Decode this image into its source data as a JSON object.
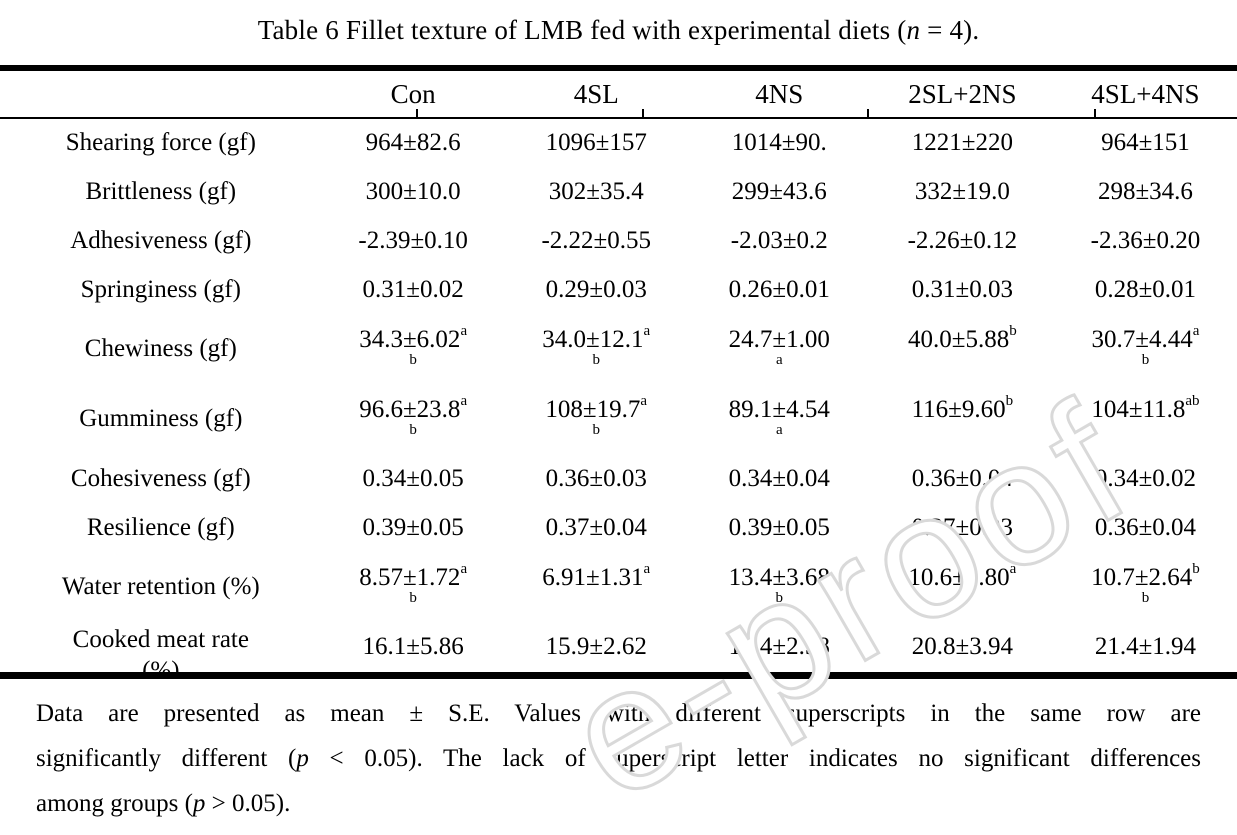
{
  "title": {
    "prefix": "Table 6 Fillet texture of LMB fed with experimental diets (",
    "italic_n": "n",
    "suffix": " = 4)."
  },
  "table": {
    "header": [
      "Con",
      "4SL",
      "4NS",
      "2SL+2NS",
      "4SL+4NS"
    ],
    "rows": [
      {
        "label": "Shearing force (gf)",
        "cells": [
          {
            "v": "964±82.6"
          },
          {
            "v": "1096±157"
          },
          {
            "v": "1014±90."
          },
          {
            "v": "1221±220"
          },
          {
            "v": "964±151"
          }
        ]
      },
      {
        "label": "Brittleness (gf)",
        "cells": [
          {
            "v": "300±10.0"
          },
          {
            "v": "302±35.4"
          },
          {
            "v": "299±43.6"
          },
          {
            "v": "332±19.0"
          },
          {
            "v": "298±34.6"
          }
        ]
      },
      {
        "label": "Adhesiveness (gf)",
        "cells": [
          {
            "v": "-2.39±0.10"
          },
          {
            "v": "-2.22±0.55"
          },
          {
            "v": "-2.03±0.2"
          },
          {
            "v": "-2.26±0.12"
          },
          {
            "v": "-2.36±0.20"
          }
        ]
      },
      {
        "label": "Springiness (gf)",
        "cells": [
          {
            "v": "0.31±0.02"
          },
          {
            "v": "0.29±0.03"
          },
          {
            "v": "0.26±0.01"
          },
          {
            "v": "0.31±0.03"
          },
          {
            "v": "0.28±0.01"
          }
        ]
      },
      {
        "label": "Chewiness (gf)",
        "cells": [
          {
            "v": "34.3±6.02",
            "sup": "a",
            "wrap": "b"
          },
          {
            "v": "34.0±12.1",
            "sup": "a",
            "wrap": "b"
          },
          {
            "v": "24.7±1.00",
            "wrap": "a"
          },
          {
            "v": "40.0±5.88",
            "sup": "b"
          },
          {
            "v": "30.7±4.44",
            "sup": "a",
            "wrap": "b"
          }
        ]
      },
      {
        "label": "Gumminess (gf)",
        "cells": [
          {
            "v": "96.6±23.8",
            "sup": "a",
            "wrap": "b"
          },
          {
            "v": "108±19.7",
            "sup": "a",
            "wrap": "b"
          },
          {
            "v": "89.1±4.54",
            "wrap": "a"
          },
          {
            "v": "116±9.60",
            "sup": "b"
          },
          {
            "v": "104±11.8",
            "sup": "ab"
          }
        ]
      },
      {
        "label": "Cohesiveness (gf)",
        "cells": [
          {
            "v": "0.34±0.05"
          },
          {
            "v": "0.36±0.03"
          },
          {
            "v": "0.34±0.04"
          },
          {
            "v": "0.36±0.04"
          },
          {
            "v": "0.34±0.02"
          }
        ]
      },
      {
        "label": "Resilience (gf)",
        "cells": [
          {
            "v": "0.39±0.05"
          },
          {
            "v": "0.37±0.04"
          },
          {
            "v": "0.39±0.05"
          },
          {
            "v": "0.37±0.03"
          },
          {
            "v": "0.36±0.04"
          }
        ]
      },
      {
        "label": "Water retention (%)",
        "cells": [
          {
            "v": "8.57±1.72",
            "sup": "a",
            "wrap": "b"
          },
          {
            "v": "6.91±1.31",
            "sup": "a"
          },
          {
            "v": "13.4±3.68",
            "wrap": "b"
          },
          {
            "v": "10.6±2.80",
            "sup": "a",
            "wrap": "b"
          },
          {
            "v": "10.7±2.64",
            "sup": "b",
            "wrap": "b"
          }
        ]
      },
      {
        "label": "Cooked meat rate",
        "label2": "(%)",
        "cells": [
          {
            "v": "16.1±5.86"
          },
          {
            "v": "15.9±2.62"
          },
          {
            "v": "19.4±2.58"
          },
          {
            "v": "20.8±3.94"
          },
          {
            "v": "21.4±1.94"
          }
        ]
      }
    ]
  },
  "footnote": {
    "line1": "Data are presented as mean ± S.E. Values with different superscripts in the same row are",
    "line2_pre": "significantly different (",
    "line2_p": "p",
    "line2_post": " < 0.05). The lack of superscript letter indicates no significant differences",
    "line3_pre": "among groups (",
    "line3_p": "p",
    "line3_post": " > 0.05)."
  },
  "watermark": {
    "text": "e-proof",
    "fill": "#ffffff",
    "stroke": "#d9d9d9"
  }
}
